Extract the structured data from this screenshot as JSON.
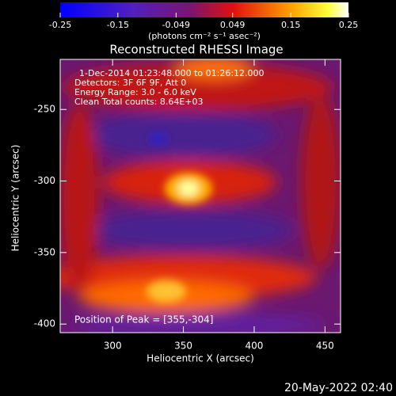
{
  "chart_data": {
    "type": "image",
    "title": "Reconstructed RHESSI Image",
    "x_label": "Heliocentric X (arcsec)",
    "y_label": "Heliocentric Y (arcsec)",
    "xlim": [
      263,
      461
    ],
    "xticks": [
      300,
      350,
      400,
      450
    ],
    "ylim": [
      -406,
      -215
    ],
    "yticks": [
      -250,
      -300,
      -350,
      -400
    ],
    "colorbar": {
      "label": "(photons cm⁻² s⁻¹ asec⁻²)",
      "lim": [
        -0.25,
        0.25
      ],
      "ticks": [
        -0.25,
        -0.15,
        -0.049,
        0.049,
        0.15,
        0.25
      ]
    },
    "annotations": [
      "1-Dec-2014 01:23:48.000 to 01:26:12.000",
      "Detectors: 3F 6F 9F, Att 0",
      "Energy Range: 3.0 - 6.0 keV",
      "Clean    Total counts: 8.64E+03"
    ],
    "peak_label": "Position of Peak = [355,-304]",
    "timestamp": "20-May-2022 02:40"
  }
}
